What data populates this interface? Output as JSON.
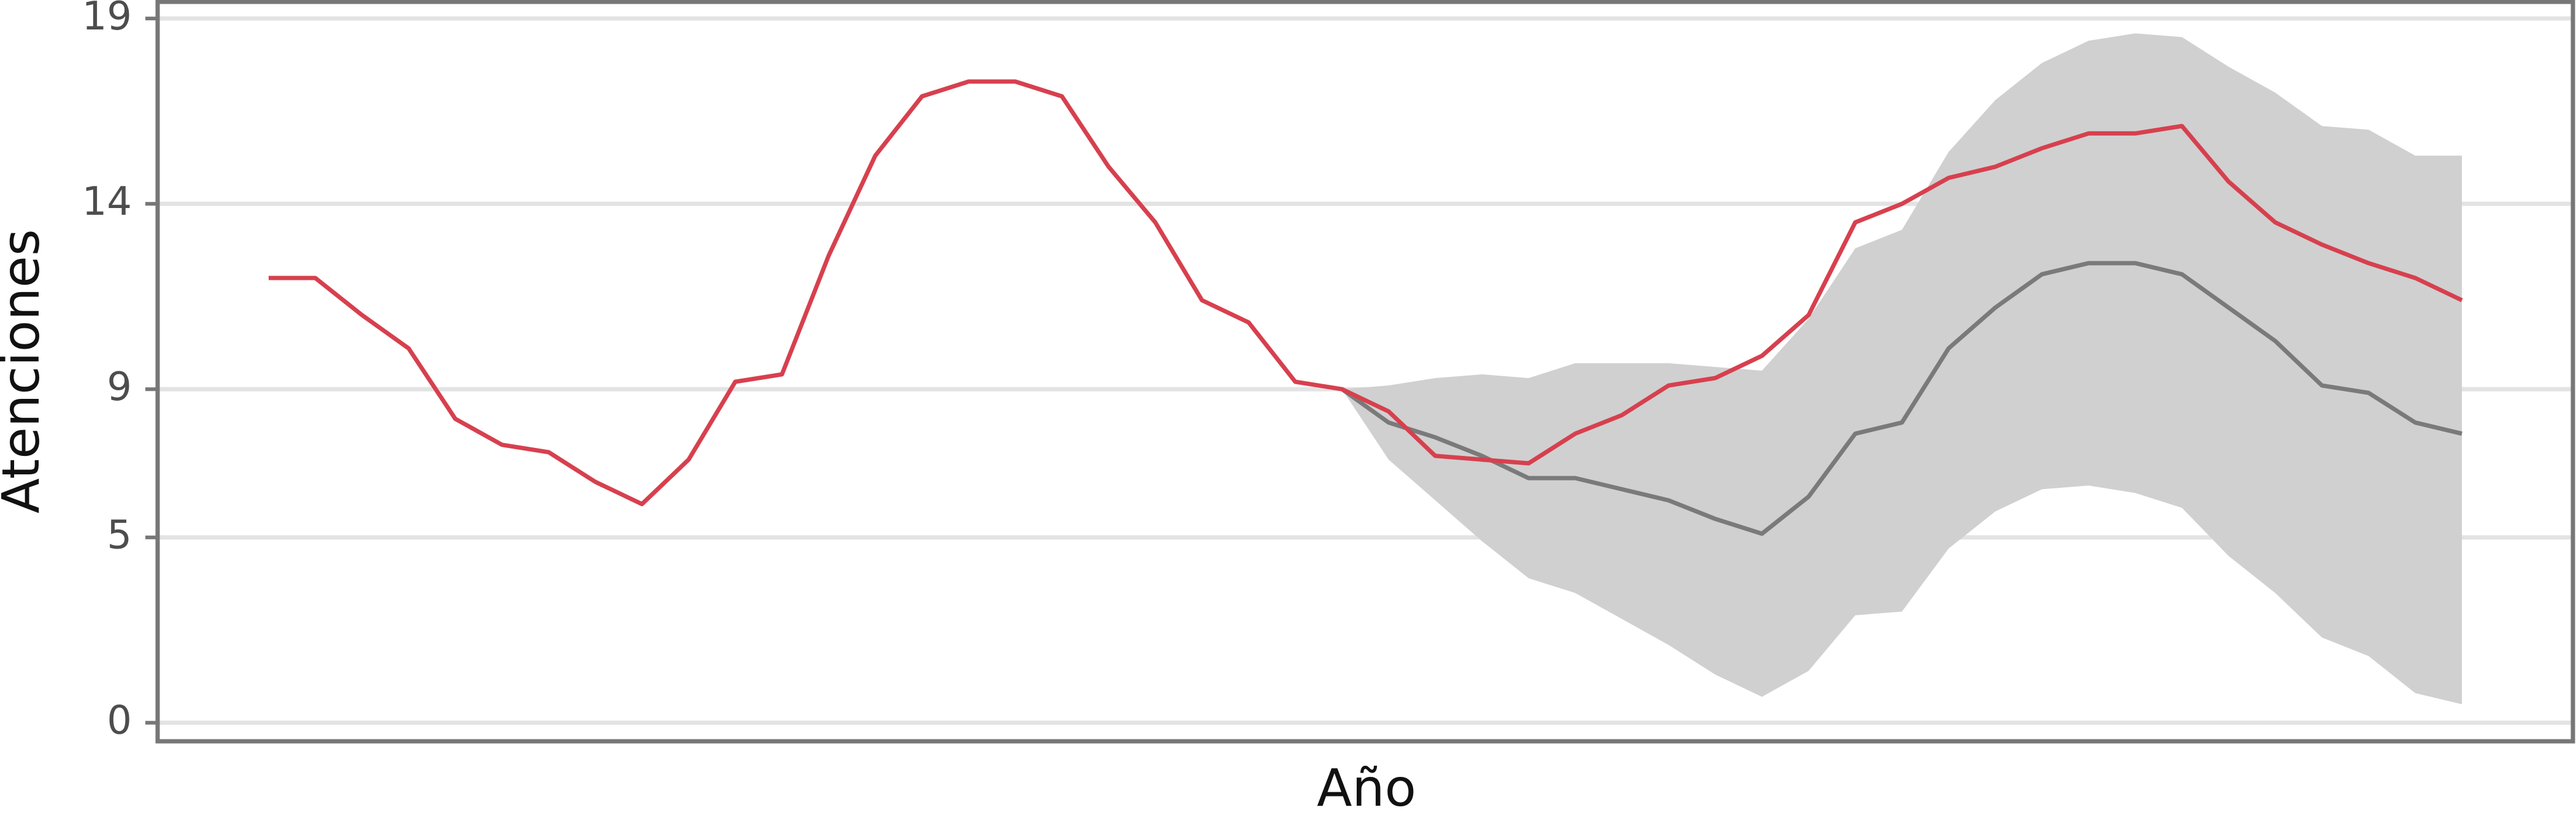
{
  "chart_data": {
    "type": "line",
    "x_label": "Año",
    "y_label": "Atenciones",
    "categories": [
      null,
      null,
      null,
      null,
      null,
      null,
      null,
      null,
      null,
      null,
      null,
      null,
      null,
      null,
      null,
      null,
      null,
      null,
      null,
      null,
      null,
      null,
      null,
      null,
      null,
      null,
      null,
      null,
      null,
      null,
      null,
      null,
      null,
      null,
      null,
      null,
      null,
      null,
      null,
      null,
      null,
      null,
      null,
      null,
      null,
      null,
      null,
      null
    ],
    "series": [
      {
        "color": "#d7404e",
        "values": [
          12.0,
          12.0,
          11.0,
          10.1,
          8.2,
          7.5,
          7.3,
          6.5,
          5.9,
          7.1,
          9.2,
          9.4,
          12.6,
          15.3,
          16.9,
          17.3,
          17.3,
          16.9,
          15.0,
          13.5,
          11.4,
          10.8,
          9.2,
          9.0,
          8.4,
          7.2,
          7.1,
          7.0,
          7.8,
          8.3,
          9.1,
          9.3,
          9.9,
          11.0,
          13.5,
          14.0,
          14.7,
          15.0,
          15.5,
          15.9,
          15.9,
          16.1,
          14.6,
          13.5,
          12.9,
          12.4,
          12.0,
          11.4
        ]
      },
      {
        "color": "#7a7a7a",
        "values": [
          null,
          null,
          null,
          null,
          null,
          null,
          null,
          null,
          null,
          null,
          null,
          null,
          null,
          null,
          null,
          null,
          null,
          null,
          null,
          null,
          null,
          null,
          null,
          9.0,
          8.1,
          7.7,
          7.2,
          6.6,
          6.6,
          6.3,
          6.0,
          5.5,
          5.1,
          6.1,
          7.8,
          8.1,
          10.1,
          11.2,
          12.1,
          12.4,
          12.4,
          12.1,
          11.2,
          10.3,
          9.1,
          8.9,
          8.1,
          7.8
        ]
      }
    ],
    "interval": {
      "color": "#d0d0d0",
      "lower": [
        null,
        null,
        null,
        null,
        null,
        null,
        null,
        null,
        null,
        null,
        null,
        null,
        null,
        null,
        null,
        null,
        null,
        null,
        null,
        null,
        null,
        null,
        null,
        9.0,
        7.1,
        6.0,
        4.9,
        3.9,
        3.5,
        2.8,
        2.1,
        1.3,
        0.7,
        1.4,
        2.9,
        3.0,
        4.7,
        5.7,
        6.3,
        6.4,
        6.2,
        5.8,
        4.5,
        3.5,
        2.3,
        1.8,
        0.8,
        0.5
      ],
      "upper": [
        null,
        null,
        null,
        null,
        null,
        null,
        null,
        null,
        null,
        null,
        null,
        null,
        null,
        null,
        null,
        null,
        null,
        null,
        null,
        null,
        null,
        null,
        null,
        9.0,
        9.1,
        9.3,
        9.4,
        9.3,
        9.7,
        9.7,
        9.7,
        9.6,
        9.5,
        10.9,
        12.8,
        13.3,
        15.4,
        16.8,
        17.8,
        18.4,
        18.6,
        18.5,
        17.7,
        17.0,
        16.1,
        16.0,
        15.3,
        15.3
      ]
    },
    "ylim": [
      -0.5,
      19.45
    ],
    "yticks": [
      0,
      5,
      9,
      14,
      19
    ],
    "grid": true
  }
}
